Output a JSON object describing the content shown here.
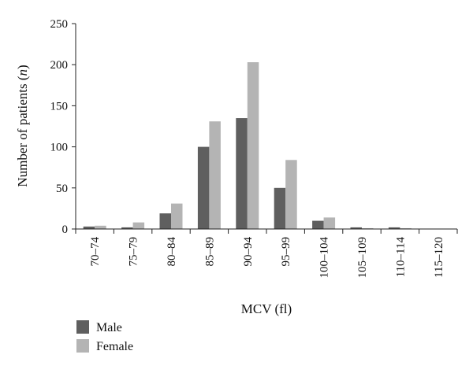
{
  "chart_data": {
    "type": "bar",
    "categories": [
      "70–74",
      "75–79",
      "80–84",
      "85–89",
      "90–94",
      "95–99",
      "100–104",
      "105–109",
      "110–114",
      "115–120"
    ],
    "series": [
      {
        "name": "Male",
        "values": [
          3,
          2,
          19,
          100,
          135,
          50,
          10,
          2,
          2,
          0
        ],
        "color": "#5f5f5f"
      },
      {
        "name": "Female",
        "values": [
          4,
          8,
          31,
          131,
          203,
          84,
          14,
          1,
          1,
          0
        ],
        "color": "#b4b4b4"
      }
    ],
    "xlabel": "MCV (fl)",
    "ylabel": "Number of patients (n)",
    "ylabel_parts": {
      "main": "Number of patients (",
      "italic": "n",
      "close": ")"
    },
    "ylim": [
      0,
      250
    ],
    "yticks": [
      0,
      50,
      100,
      150,
      200,
      250
    ],
    "grid": false,
    "legend_position": "bottom-left"
  }
}
